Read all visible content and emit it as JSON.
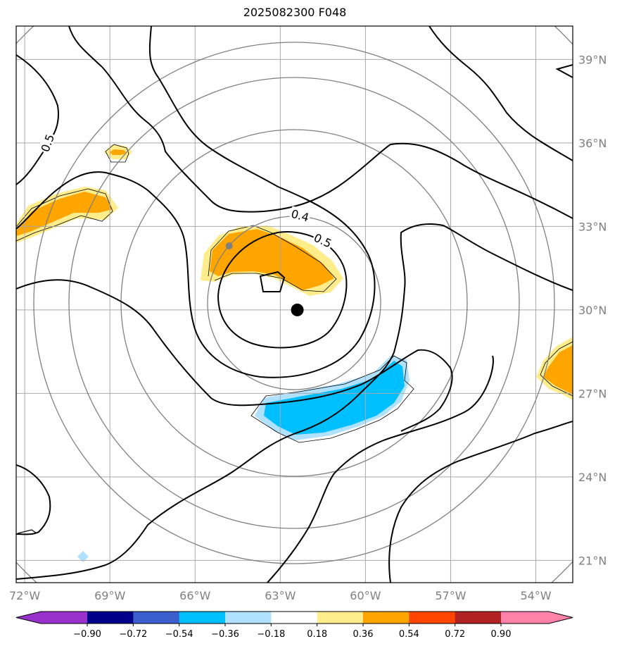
{
  "title": "2025082300 F048",
  "map": {
    "lon_range": [
      -72.3,
      -52.7
    ],
    "lat_range": [
      20.2,
      40.2
    ],
    "lon_ticks": [
      {
        "value": -72,
        "label": "72°W"
      },
      {
        "value": -69,
        "label": "69°W"
      },
      {
        "value": -66,
        "label": "66°W"
      },
      {
        "value": -63,
        "label": "63°W"
      },
      {
        "value": -60,
        "label": "60°W"
      },
      {
        "value": -57,
        "label": "57°W"
      },
      {
        "value": -54,
        "label": "54°W"
      }
    ],
    "lat_ticks": [
      {
        "value": 21,
        "label": "21°N"
      },
      {
        "value": 24,
        "label": "24°N"
      },
      {
        "value": 27,
        "label": "27°N"
      },
      {
        "value": 30,
        "label": "30°N"
      },
      {
        "value": 33,
        "label": "33°N"
      },
      {
        "value": 36,
        "label": "36°N"
      },
      {
        "value": 39,
        "label": "39°N"
      }
    ],
    "grid_color": "#a9a9a9",
    "range_ring_color": "#808080",
    "storm_center": {
      "lon": -62.4,
      "lat": 30.0
    },
    "secondary_marker": {
      "lon": -64.8,
      "lat": 32.3
    },
    "contour_labels": [
      {
        "text": "0.5",
        "lon": -71.2,
        "lat": 36.0,
        "rotate": -70
      },
      {
        "text": "0.4",
        "lon": -62.3,
        "lat": 33.4,
        "rotate": 15
      },
      {
        "text": "0.5",
        "lon": -61.5,
        "lat": 32.5,
        "rotate": 25
      }
    ]
  },
  "colorbar": {
    "ticks": [
      "−0.90",
      "−0.72",
      "−0.54",
      "−0.36",
      "−0.18",
      "0.18",
      "0.36",
      "0.54",
      "0.72",
      "0.90"
    ],
    "colors": [
      "#9932cc",
      "#00008b",
      "#3a5fcd",
      "#00bfff",
      "#b0e2ff",
      "#ffffff",
      "#ffec8b",
      "#ffa500",
      "#ff4500",
      "#b22222",
      "#ff82ab"
    ]
  }
}
